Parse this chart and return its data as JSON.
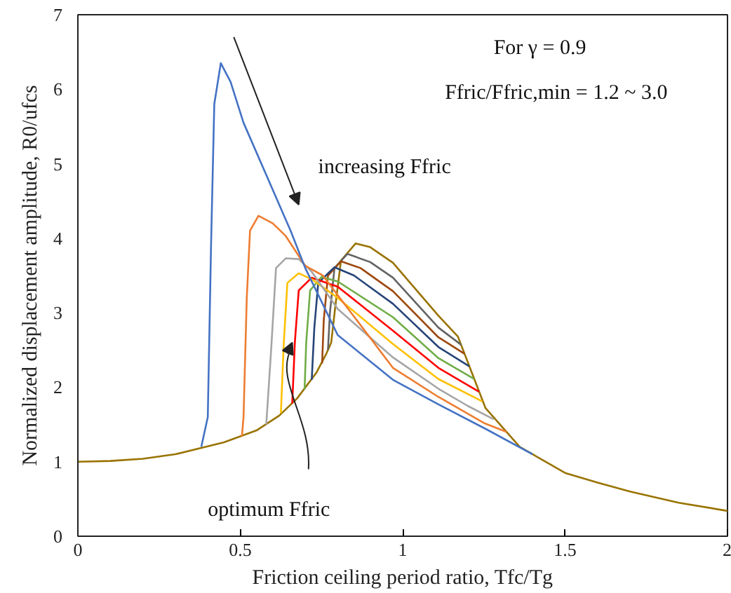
{
  "chart_data": {
    "type": "line",
    "xlabel": "Friction ceiling period ratio, Tfc/Tg",
    "ylabel": "Normalized displacement amplitude, R0/ufcs",
    "xlim": [
      0,
      2
    ],
    "ylim": [
      0,
      7
    ],
    "xticks": [
      0,
      0.5,
      1,
      1.5,
      2
    ],
    "yticks": [
      0,
      1,
      2,
      3,
      4,
      5,
      6,
      7
    ],
    "grid": false,
    "marker": "none",
    "line_style": "solid",
    "annotations": [
      "For  γ = 0.9",
      "Ffric/Ffric,min = 1.2 ~ 3.0",
      "increasing Ffric",
      "optimum Ffric"
    ],
    "series": [
      {
        "color": "#4472c4",
        "x": [
          0.38,
          0.4,
          0.41,
          0.42,
          0.44,
          0.47,
          0.51,
          0.595,
          0.655,
          0.7,
          0.8,
          0.97,
          1.11,
          1.26,
          1.4
        ],
        "values": [
          1.2,
          1.6,
          3.9,
          5.8,
          6.35,
          6.1,
          5.55,
          4.7,
          4.1,
          3.6,
          2.7,
          2.1,
          1.77,
          1.43,
          1.1
        ]
      },
      {
        "color": "#ed7d31",
        "x": [
          0.505,
          0.51,
          0.52,
          0.53,
          0.556,
          0.6,
          0.64,
          0.7,
          0.754,
          0.85,
          0.97,
          1.11,
          1.25,
          1.32
        ],
        "values": [
          1.34,
          1.6,
          3.2,
          4.1,
          4.3,
          4.2,
          4.03,
          3.63,
          3.5,
          2.95,
          2.26,
          1.87,
          1.52,
          1.4
        ]
      },
      {
        "color": "#a5a5a5",
        "x": [
          0.58,
          0.595,
          0.61,
          0.64,
          0.68,
          0.72,
          0.8,
          0.97,
          1.11,
          1.2,
          1.28
        ],
        "values": [
          1.5,
          2.5,
          3.6,
          3.73,
          3.72,
          3.55,
          3.05,
          2.4,
          1.98,
          1.75,
          1.57
        ]
      },
      {
        "color": "#ffc000",
        "x": [
          0.625,
          0.634,
          0.645,
          0.68,
          0.72,
          0.8,
          0.97,
          1.11,
          1.245
        ],
        "values": [
          1.65,
          2.6,
          3.4,
          3.53,
          3.45,
          3.2,
          2.58,
          2.11,
          1.81
        ]
      },
      {
        "color": "#ff0000",
        "x": [
          0.66,
          0.668,
          0.68,
          0.72,
          0.8,
          0.97,
          1.11,
          1.235
        ],
        "values": [
          1.78,
          2.6,
          3.3,
          3.47,
          3.35,
          2.76,
          2.26,
          1.94
        ]
      },
      {
        "color": "#70ad47",
        "x": [
          0.698,
          0.703,
          0.715,
          0.75,
          0.8,
          0.97,
          1.11,
          1.22
        ],
        "values": [
          1.97,
          2.6,
          3.3,
          3.48,
          3.42,
          2.94,
          2.39,
          2.11
        ]
      },
      {
        "color": "#264478",
        "x": [
          0.72,
          0.728,
          0.74,
          0.79,
          0.85,
          0.97,
          1.11,
          1.205
        ],
        "values": [
          2.1,
          2.8,
          3.4,
          3.61,
          3.5,
          3.12,
          2.54,
          2.28
        ]
      },
      {
        "color": "#9e480e",
        "x": [
          0.752,
          0.757,
          0.77,
          0.81,
          0.87,
          0.97,
          1.11,
          1.19
        ],
        "values": [
          2.32,
          2.9,
          3.5,
          3.69,
          3.6,
          3.29,
          2.67,
          2.45
        ]
      },
      {
        "color": "#636363",
        "x": [
          0.77,
          0.776,
          0.79,
          0.83,
          0.9,
          0.97,
          1.11,
          1.18
        ],
        "values": [
          2.5,
          3.0,
          3.6,
          3.79,
          3.68,
          3.47,
          2.8,
          2.57
        ]
      },
      {
        "color": "#997300",
        "x": [
          0,
          0.1,
          0.2,
          0.3,
          0.45,
          0.55,
          0.62,
          0.675,
          0.735,
          0.765,
          0.78,
          0.793,
          0.81,
          0.855,
          0.9,
          0.97,
          1.11,
          1.17,
          1.255,
          1.36,
          1.5,
          1.6,
          1.7,
          1.85,
          2.0
        ],
        "values": [
          1.0,
          1.01,
          1.04,
          1.1,
          1.26,
          1.42,
          1.62,
          1.85,
          2.2,
          2.45,
          2.6,
          3.1,
          3.7,
          3.93,
          3.88,
          3.67,
          2.96,
          2.68,
          1.72,
          1.2,
          0.85,
          0.72,
          0.6,
          0.45,
          0.34
        ]
      }
    ]
  }
}
